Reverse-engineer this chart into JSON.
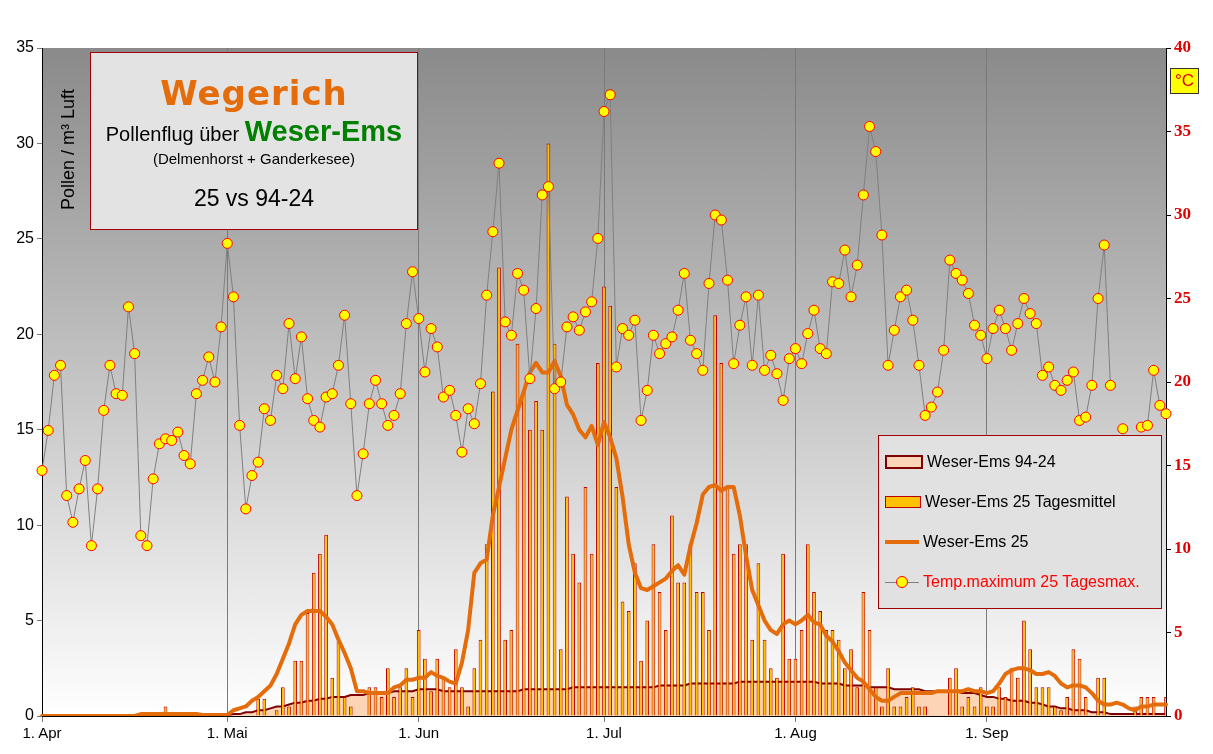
{
  "chart_data": {
    "type": "bar",
    "title": "Wegerich",
    "subtitle": "Pollenflug über Weser-Ems",
    "annotations": [
      "(Delmenhorst + Ganderkesee)",
      "25 vs 94-24"
    ],
    "ylabel": "Pollen / m³ Luft",
    "y2label": "°C",
    "categories": [
      "1. Apr",
      null,
      null,
      null,
      null,
      null,
      null,
      null,
      null,
      null,
      null,
      null,
      null,
      null,
      null,
      null,
      null,
      null,
      null,
      null,
      null,
      null,
      null,
      null,
      null,
      null,
      null,
      null,
      null,
      null,
      "1. Mai",
      null,
      null,
      null,
      null,
      null,
      null,
      null,
      null,
      null,
      null,
      null,
      null,
      null,
      null,
      null,
      null,
      null,
      null,
      null,
      null,
      null,
      null,
      null,
      null,
      null,
      null,
      null,
      null,
      null,
      null,
      "1. Jun",
      null,
      null,
      null,
      null,
      null,
      null,
      null,
      null,
      null,
      null,
      null,
      null,
      null,
      null,
      null,
      null,
      null,
      null,
      null,
      null,
      null,
      null,
      null,
      null,
      null,
      null,
      null,
      null,
      null,
      "1. Jul",
      null,
      null,
      null,
      null,
      null,
      null,
      null,
      null,
      null,
      null,
      null,
      null,
      null,
      null,
      null,
      null,
      null,
      null,
      null,
      null,
      null,
      null,
      null,
      null,
      null,
      null,
      null,
      null,
      null,
      null,
      "1. Aug",
      null,
      null,
      null,
      null,
      null,
      null,
      null,
      null,
      null,
      null,
      null,
      null,
      null,
      null,
      null,
      null,
      null,
      null,
      null,
      null,
      null,
      null,
      null,
      null,
      null,
      null,
      null,
      null,
      null,
      null,
      "1. Sep",
      null,
      null,
      null,
      null,
      null,
      null,
      null,
      null,
      null,
      null,
      null,
      null,
      null,
      null,
      null,
      null,
      null,
      null,
      null,
      null,
      null,
      null,
      null,
      null,
      null,
      null,
      null,
      null,
      null
    ],
    "ylim": [
      0,
      35
    ],
    "yticks": [
      0,
      5,
      10,
      15,
      20,
      25,
      30,
      35
    ],
    "y2lim": [
      0,
      40
    ],
    "y2ticks": [
      0,
      5,
      10,
      15,
      20,
      25,
      30,
      35,
      40
    ],
    "grid": "x",
    "legend": "right",
    "series": [
      {
        "name": "Weser-Ems 94-24",
        "type": "area",
        "color": "#fbd5b5",
        "values": [
          0,
          0,
          0,
          0,
          0,
          0,
          0,
          0,
          0,
          0,
          0,
          0,
          0,
          0,
          0,
          0,
          0,
          0,
          0,
          0,
          0,
          0,
          0,
          0,
          0,
          0,
          0,
          0,
          0,
          0,
          0.05,
          0.1,
          0.1,
          0.2,
          0.2,
          0.3,
          0.3,
          0.4,
          0.5,
          0.5,
          0.6,
          0.7,
          0.7,
          0.8,
          0.8,
          0.9,
          0.9,
          1.0,
          1.0,
          1.0,
          1.1,
          1.1,
          1.1,
          1.2,
          1.2,
          1.2,
          1.2,
          1.3,
          1.3,
          1.3,
          1.3,
          1.4,
          1.4,
          1.4,
          1.4,
          1.3,
          1.3,
          1.3,
          1.3,
          1.3,
          1.3,
          1.3,
          1.3,
          1.3,
          1.3,
          1.3,
          1.3,
          1.3,
          1.4,
          1.4,
          1.4,
          1.4,
          1.4,
          1.4,
          1.4,
          1.4,
          1.5,
          1.5,
          1.5,
          1.5,
          1.5,
          1.5,
          1.5,
          1.5,
          1.5,
          1.5,
          1.5,
          1.5,
          1.5,
          1.5,
          1.6,
          1.6,
          1.6,
          1.6,
          1.6,
          1.7,
          1.7,
          1.7,
          1.7,
          1.7,
          1.7,
          1.7,
          1.7,
          1.8,
          1.8,
          1.8,
          1.8,
          1.8,
          1.8,
          1.8,
          1.8,
          1.8,
          1.8,
          1.8,
          1.8,
          1.8,
          1.7,
          1.7,
          1.7,
          1.7,
          1.6,
          1.6,
          1.6,
          1.6,
          1.5,
          1.5,
          1.5,
          1.5,
          1.4,
          1.4,
          1.4,
          1.4,
          1.4,
          1.3,
          1.3,
          1.3,
          1.3,
          1.3,
          1.3,
          1.2,
          1.2,
          1.2,
          1.1,
          1.0,
          1.0,
          0.9,
          0.9,
          0.8,
          0.8,
          0.8,
          0.7,
          0.7,
          0.6,
          0.5,
          0.5,
          0.4,
          0.4,
          0.3,
          0.3,
          0.3,
          0.2,
          0.2,
          0.2,
          0.1,
          0.1,
          0.1,
          0.1,
          0.1,
          0.1,
          0.1,
          0.1,
          0.1,
          0.1
        ]
      },
      {
        "name": "Weser-Ems 25 Tagesmittel",
        "color": "#ffc000",
        "values": [
          0,
          0,
          0,
          0,
          0,
          0,
          0,
          0,
          0,
          0,
          0,
          0,
          0,
          0,
          0,
          0,
          0,
          0,
          0,
          0,
          0.5,
          0,
          0,
          0,
          0,
          0,
          0,
          0,
          0,
          0,
          0,
          0,
          0,
          0,
          0,
          0.9,
          0.9,
          0,
          0.3,
          1.5,
          0.5,
          2.9,
          2.9,
          5.4,
          7.5,
          8.5,
          9.5,
          2.0,
          3.9,
          1.0,
          0.5,
          0,
          0,
          1.5,
          1.5,
          1.0,
          2.5,
          1.0,
          1.5,
          2.5,
          1.0,
          4.5,
          3.0,
          1.3,
          3.0,
          2.0,
          1.5,
          3.5,
          1.5,
          0.5,
          2.5,
          4.0,
          9.0,
          17,
          23.5,
          4.0,
          4.5,
          19.5,
          17,
          15,
          16.5,
          15,
          30,
          19.5,
          3.5,
          11.5,
          8.5,
          7,
          12,
          8.5,
          18.5,
          22.5,
          21.5,
          12,
          6,
          5.5,
          8,
          2.9,
          5,
          9,
          6.5,
          4.5,
          10.5,
          7,
          7,
          9,
          6.5,
          6.5,
          4.5,
          21,
          18.5,
          12,
          8.5,
          9,
          9,
          4,
          8,
          4,
          2.5,
          2,
          8.5,
          3,
          3,
          4.5,
          9,
          6.5,
          5.5,
          4.5,
          4.5,
          4,
          2.5,
          3.5,
          1.5,
          6.5,
          4.5,
          1.5,
          0.5,
          2.5,
          0.5,
          0.5,
          1,
          1.5,
          0.5,
          0.5,
          0,
          0,
          0,
          2,
          2.5,
          0.5,
          1,
          0.5,
          1.5,
          0.5,
          0.5,
          1.5,
          1,
          2.5,
          2,
          5,
          3.5,
          1.5,
          1.5,
          1.5,
          0.5,
          0.3,
          1,
          3.5,
          3,
          1,
          0,
          2,
          2,
          0,
          0,
          0,
          0,
          0.5,
          1,
          1,
          1,
          0,
          1
        ]
      },
      {
        "name": "Weser-Ems 25",
        "type": "line",
        "color": "#e46c0a",
        "values": [
          0,
          0,
          0,
          0,
          0,
          0,
          0,
          0,
          0,
          0,
          0,
          0,
          0,
          0,
          0,
          0,
          0.1,
          0.1,
          0.1,
          0.1,
          0.1,
          0.1,
          0.1,
          0.1,
          0.1,
          0.1,
          0.05,
          0.05,
          0.05,
          0.05,
          0.05,
          0.3,
          0.4,
          0.5,
          0.8,
          1.0,
          1.3,
          1.6,
          2.2,
          3.0,
          3.8,
          4.8,
          5.3,
          5.5,
          5.5,
          5.5,
          5.2,
          4.8,
          4.0,
          3.3,
          2.5,
          1.3,
          1.3,
          1.2,
          1.2,
          1.2,
          1.2,
          1.5,
          1.6,
          1.9,
          1.9,
          2.0,
          2.0,
          2.3,
          2.1,
          2.0,
          1.8,
          1.7,
          2.8,
          4.5,
          7.5,
          8.0,
          8.2,
          10.5,
          12,
          13.5,
          15,
          16,
          17,
          18,
          18.5,
          18,
          18,
          18.6,
          17.8,
          16.3,
          15.8,
          15,
          14.6,
          15.2,
          14.2,
          15.4,
          14.6,
          13.5,
          11.5,
          9.0,
          7.5,
          6.7,
          6.6,
          6.8,
          7.0,
          7.2,
          7.6,
          7.9,
          7.4,
          8.9,
          10.1,
          11.6,
          12,
          12.1,
          11.8,
          12,
          12,
          10.5,
          8.4,
          6.6,
          5.8,
          5.0,
          4.5,
          4.3,
          4.8,
          5.0,
          4.8,
          5.0,
          5.3,
          4.9,
          4.8,
          4.2,
          3.9,
          3.4,
          2.8,
          2.4,
          2.0,
          1.8,
          1.4,
          1.0,
          0.8,
          0.8,
          1.0,
          1.2,
          1.2,
          1.2,
          1.2,
          1.2,
          1.2,
          1.3,
          1.3,
          1.3,
          1.3,
          1.3,
          1.4,
          1.3,
          1.3,
          1.2,
          1.3,
          1.7,
          2.2,
          2.4,
          2.5,
          2.5,
          2.4,
          2.2,
          2.2,
          2.3,
          2.1,
          1.7,
          1.5,
          1.6,
          1.6,
          1.5,
          1.2,
          0.8,
          0.6,
          0.6,
          0.7,
          0.6,
          0.4,
          0.3,
          0.5,
          0.5,
          0.6,
          0.6,
          0.6
        ]
      },
      {
        "name": "Temp.maximum 25 Tagesmax.",
        "type": "line",
        "axis": "y2",
        "marker": "circle",
        "color": "#ffff00",
        "values": [
          14.7,
          17.1,
          20.4,
          21.0,
          13.2,
          11.6,
          13.6,
          15.3,
          10.2,
          13.6,
          18.3,
          21.0,
          19.3,
          19.2,
          24.5,
          21.7,
          10.8,
          10.2,
          14.2,
          16.3,
          16.6,
          16.5,
          17.0,
          15.6,
          15.1,
          19.3,
          20.1,
          21.5,
          20.0,
          23.3,
          28.3,
          25.1,
          17.4,
          12.4,
          14.4,
          15.2,
          18.4,
          17.7,
          20.4,
          19.6,
          23.5,
          20.2,
          22.7,
          19.0,
          17.7,
          17.3,
          19.1,
          19.3,
          21.0,
          24.0,
          18.7,
          13.2,
          15.7,
          18.7,
          20.1,
          18.7,
          17.4,
          18.0,
          19.3,
          23.5,
          26.6,
          23.8,
          20.6,
          23.2,
          22.1,
          19.1,
          19.5,
          18.0,
          15.8,
          18.4,
          17.5,
          19.9,
          25.2,
          29.0,
          33.1,
          23.6,
          22.8,
          26.5,
          25.5,
          20.2,
          24.4,
          31.2,
          31.7,
          19.6,
          20.0,
          23.3,
          23.9,
          23.1,
          24.2,
          24.8,
          28.6,
          36.2,
          37.2,
          20.9,
          23.2,
          22.8,
          23.7,
          17.7,
          19.5,
          22.8,
          21.7,
          22.3,
          22.7,
          24.3,
          26.5,
          22.5,
          21.7,
          20.7,
          25.9,
          30.0,
          29.7,
          26.1,
          21.1,
          23.4,
          25.1,
          21.0,
          25.2,
          20.7,
          21.6,
          20.5,
          18.9,
          21.4,
          22.0,
          21.1,
          22.9,
          24.3,
          22.0,
          21.7,
          26.0,
          25.9,
          27.9,
          25.1,
          27.0,
          31.2,
          35.3,
          33.8,
          28.8,
          21.0,
          23.1,
          25.1,
          25.5,
          23.7,
          21.0,
          18.0,
          18.5,
          19.4,
          21.9,
          27.3,
          26.5,
          26.1,
          25.3,
          23.4,
          22.8,
          21.4,
          23.2,
          24.3,
          23.2,
          21.9,
          23.5,
          25.0,
          24.1,
          23.5,
          20.4,
          20.9,
          19.8,
          19.5,
          20.1,
          20.6,
          17.7,
          17.9,
          19.8,
          25.0,
          28.2,
          19.8,
          null,
          17.2,
          null,
          null,
          17.3,
          17.4,
          20.7,
          18.6,
          18.1
        ]
      }
    ]
  }
}
